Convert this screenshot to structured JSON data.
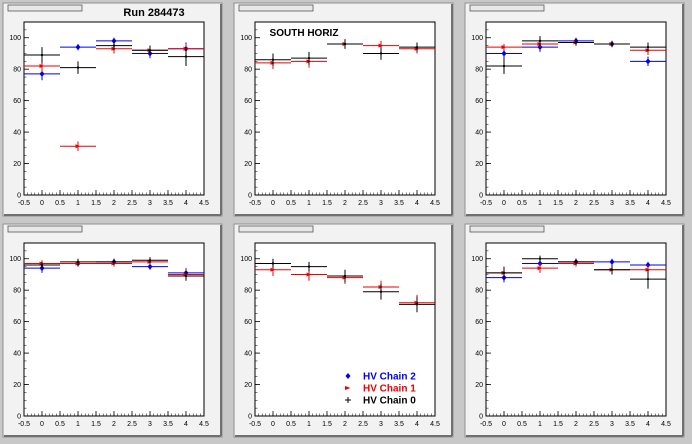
{
  "header": {
    "run_label": "Run 284473",
    "panel_label": "SOUTH HORIZ"
  },
  "colors": {
    "background": "#c8c8c8",
    "frame": "#f2f2f2",
    "plot_area": "#ffffff",
    "hv_chain_2": "#0000ee",
    "hv_chain_1": "#ee0000",
    "hv_chain_0": "#000000"
  },
  "legend": [
    {
      "label": "HV Chain 2",
      "color": "#0000ee",
      "marker": "diamond"
    },
    {
      "label": "HV Chain 1",
      "color": "#ee0000",
      "marker": "arrow"
    },
    {
      "label": "HV Chain 0",
      "color": "#000000",
      "marker": "plus"
    }
  ],
  "chart_data": [
    {
      "type": "scatter",
      "title": "",
      "xlim": [
        -0.5,
        4.5
      ],
      "ylim": [
        0,
        110
      ],
      "xticks": [
        -0.5,
        0,
        0.5,
        1,
        1.5,
        2,
        2.5,
        3,
        3.5,
        4,
        4.5
      ],
      "yticks": [
        0,
        20,
        40,
        60,
        80,
        100
      ],
      "series": [
        {
          "name": "HV Chain 2",
          "color": "#0000ee",
          "x": [
            0,
            1,
            2,
            3,
            4
          ],
          "y": [
            77,
            94,
            98,
            90,
            93
          ],
          "yerr": [
            4,
            2,
            2,
            3,
            4
          ]
        },
        {
          "name": "HV Chain 1",
          "color": "#ee0000",
          "x": [
            0,
            1,
            2,
            3,
            4
          ],
          "y": [
            82,
            31,
            93,
            92,
            93
          ],
          "yerr": [
            4,
            3,
            3,
            3,
            3
          ]
        },
        {
          "name": "HV Chain 0",
          "color": "#000000",
          "x": [
            0,
            1,
            2,
            3,
            4
          ],
          "y": [
            89,
            81,
            95,
            92,
            88
          ],
          "yerr": [
            5,
            4,
            3,
            3,
            6
          ]
        }
      ]
    },
    {
      "type": "scatter",
      "title": "",
      "xlim": [
        -0.5,
        4.5
      ],
      "ylim": [
        0,
        110
      ],
      "xticks": [
        -0.5,
        0,
        0.5,
        1,
        1.5,
        2,
        2.5,
        3,
        3.5,
        4,
        4.5
      ],
      "yticks": [
        0,
        20,
        40,
        60,
        80,
        100
      ],
      "series": [
        {
          "name": "HV Chain 2",
          "color": "#0000ee",
          "x": [],
          "y": [],
          "yerr": []
        },
        {
          "name": "HV Chain 1",
          "color": "#ee0000",
          "x": [
            0,
            1,
            2,
            3,
            4
          ],
          "y": [
            84,
            85,
            96,
            95,
            93
          ],
          "yerr": [
            4,
            4,
            3,
            3,
            3
          ]
        },
        {
          "name": "HV Chain 0",
          "color": "#000000",
          "x": [
            0,
            1,
            2,
            3,
            4
          ],
          "y": [
            86,
            87,
            96,
            90,
            94
          ],
          "yerr": [
            4,
            4,
            3,
            4,
            3
          ]
        }
      ]
    },
    {
      "type": "scatter",
      "title": "",
      "xlim": [
        -0.5,
        4.5
      ],
      "ylim": [
        0,
        110
      ],
      "xticks": [
        -0.5,
        0,
        0.5,
        1,
        1.5,
        2,
        2.5,
        3,
        3.5,
        4,
        4.5
      ],
      "yticks": [
        0,
        20,
        40,
        60,
        80,
        100
      ],
      "series": [
        {
          "name": "HV Chain 2",
          "color": "#0000ee",
          "x": [
            0,
            1,
            2,
            3,
            4
          ],
          "y": [
            90,
            94,
            98,
            96,
            85
          ],
          "yerr": [
            3,
            3,
            2,
            2,
            3
          ]
        },
        {
          "name": "HV Chain 1",
          "color": "#ee0000",
          "x": [
            0,
            1,
            2,
            3,
            4
          ],
          "y": [
            94,
            96,
            97,
            96,
            92
          ],
          "yerr": [
            2,
            2,
            2,
            2,
            3
          ]
        },
        {
          "name": "HV Chain 0",
          "color": "#000000",
          "x": [
            0,
            1,
            2,
            3,
            4
          ],
          "y": [
            82,
            98,
            97,
            96,
            94
          ],
          "yerr": [
            5,
            3,
            2,
            2,
            3
          ]
        }
      ]
    },
    {
      "type": "scatter",
      "title": "",
      "xlim": [
        -0.5,
        4.5
      ],
      "ylim": [
        0,
        110
      ],
      "xticks": [
        -0.5,
        0,
        0.5,
        1,
        1.5,
        2,
        2.5,
        3,
        3.5,
        4,
        4.5
      ],
      "yticks": [
        0,
        20,
        40,
        60,
        80,
        100
      ],
      "series": [
        {
          "name": "HV Chain 2",
          "color": "#0000ee",
          "x": [
            0,
            1,
            2,
            3,
            4
          ],
          "y": [
            94,
            97,
            98,
            95,
            91
          ],
          "yerr": [
            3,
            2,
            2,
            2,
            3
          ]
        },
        {
          "name": "HV Chain 1",
          "color": "#ee0000",
          "x": [
            0,
            1,
            2,
            3,
            4
          ],
          "y": [
            97,
            97,
            97,
            98,
            90
          ],
          "yerr": [
            2,
            2,
            2,
            2,
            3
          ]
        },
        {
          "name": "HV Chain 0",
          "color": "#000000",
          "x": [
            0,
            1,
            2,
            3,
            4
          ],
          "y": [
            96,
            98,
            98,
            99,
            89
          ],
          "yerr": [
            2,
            2,
            2,
            2,
            3
          ]
        }
      ]
    },
    {
      "type": "scatter",
      "title": "",
      "xlim": [
        -0.5,
        4.5
      ],
      "ylim": [
        0,
        110
      ],
      "xticks": [
        -0.5,
        0,
        0.5,
        1,
        1.5,
        2,
        2.5,
        3,
        3.5,
        4,
        4.5
      ],
      "yticks": [
        0,
        20,
        40,
        60,
        80,
        100
      ],
      "series": [
        {
          "name": "HV Chain 2",
          "color": "#0000ee",
          "x": [],
          "y": [],
          "yerr": []
        },
        {
          "name": "HV Chain 1",
          "color": "#ee0000",
          "x": [
            0,
            1,
            2,
            3,
            4
          ],
          "y": [
            93,
            90,
            88,
            82,
            72
          ],
          "yerr": [
            4,
            4,
            4,
            4,
            5
          ]
        },
        {
          "name": "HV Chain 0",
          "color": "#000000",
          "x": [
            0,
            1,
            2,
            3,
            4
          ],
          "y": [
            97,
            95,
            89,
            79,
            71
          ],
          "yerr": [
            3,
            3,
            4,
            5,
            5
          ]
        }
      ]
    },
    {
      "type": "scatter",
      "title": "",
      "xlim": [
        -0.5,
        4.5
      ],
      "ylim": [
        0,
        110
      ],
      "xticks": [
        -0.5,
        0,
        0.5,
        1,
        1.5,
        2,
        2.5,
        3,
        3.5,
        4,
        4.5
      ],
      "yticks": [
        0,
        20,
        40,
        60,
        80,
        100
      ],
      "series": [
        {
          "name": "HV Chain 2",
          "color": "#0000ee",
          "x": [
            0,
            1,
            2,
            3,
            4
          ],
          "y": [
            88,
            97,
            98,
            98,
            96
          ],
          "yerr": [
            3,
            2,
            2,
            2,
            2
          ]
        },
        {
          "name": "HV Chain 1",
          "color": "#ee0000",
          "x": [
            0,
            1,
            2,
            3,
            4
          ],
          "y": [
            91,
            94,
            97,
            93,
            93
          ],
          "yerr": [
            3,
            3,
            2,
            3,
            3
          ]
        },
        {
          "name": "HV Chain 0",
          "color": "#000000",
          "x": [
            0,
            1,
            2,
            3,
            4
          ],
          "y": [
            91,
            100,
            98,
            93,
            87
          ],
          "yerr": [
            4,
            2,
            2,
            3,
            6
          ]
        }
      ]
    }
  ]
}
